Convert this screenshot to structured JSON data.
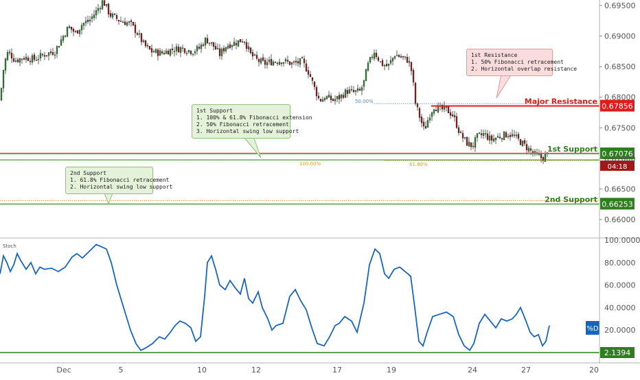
{
  "chart_data": [
    {
      "type": "candlestick",
      "panel": "price",
      "y_axis_ticks": [
        "0.69500",
        "0.69000",
        "0.68500",
        "0.68000",
        "0.67500",
        "0.67000",
        "0.66500",
        "0.66000"
      ],
      "ylim": [
        0.6565,
        0.6965
      ],
      "x_axis_ticks": [
        "Dec",
        "5",
        "10",
        "12",
        "17",
        "19",
        "24",
        "27",
        "20"
      ],
      "close_path": [
        [
          0,
          0.6795
        ],
        [
          6,
          0.6855
        ],
        [
          12,
          0.6875
        ],
        [
          22,
          0.686
        ],
        [
          35,
          0.6865
        ],
        [
          50,
          0.6862
        ],
        [
          65,
          0.687
        ],
        [
          80,
          0.6875
        ],
        [
          92,
          0.69
        ],
        [
          100,
          0.6915
        ],
        [
          110,
          0.6905
        ],
        [
          120,
          0.692
        ],
        [
          130,
          0.6925
        ],
        [
          140,
          0.694
        ],
        [
          150,
          0.6958
        ],
        [
          160,
          0.6935
        ],
        [
          175,
          0.6925
        ],
        [
          190,
          0.692
        ],
        [
          200,
          0.6905
        ],
        [
          210,
          0.6885
        ],
        [
          220,
          0.6875
        ],
        [
          235,
          0.6872
        ],
        [
          250,
          0.6878
        ],
        [
          265,
          0.688
        ],
        [
          280,
          0.6875
        ],
        [
          290,
          0.688
        ],
        [
          300,
          0.6895
        ],
        [
          310,
          0.6885
        ],
        [
          320,
          0.687
        ],
        [
          330,
          0.6885
        ],
        [
          345,
          0.689
        ],
        [
          355,
          0.6895
        ],
        [
          365,
          0.687
        ],
        [
          375,
          0.686
        ],
        [
          385,
          0.6855
        ],
        [
          395,
          0.6858
        ],
        [
          410,
          0.686
        ],
        [
          425,
          0.6855
        ],
        [
          440,
          0.6858
        ],
        [
          450,
          0.684
        ],
        [
          458,
          0.6815
        ],
        [
          465,
          0.6795
        ],
        [
          475,
          0.68
        ],
        [
          485,
          0.6795
        ],
        [
          495,
          0.68
        ],
        [
          505,
          0.681
        ],
        [
          515,
          0.6808
        ],
        [
          525,
          0.681
        ],
        [
          530,
          0.6825
        ],
        [
          535,
          0.685
        ],
        [
          545,
          0.6875
        ],
        [
          555,
          0.6855
        ],
        [
          565,
          0.685
        ],
        [
          575,
          0.687
        ],
        [
          585,
          0.6865
        ],
        [
          595,
          0.686
        ],
        [
          600,
          0.684
        ],
        [
          605,
          0.679
        ],
        [
          612,
          0.6765
        ],
        [
          618,
          0.6745
        ],
        [
          625,
          0.677
        ],
        [
          632,
          0.6785
        ],
        [
          640,
          0.678
        ],
        [
          650,
          0.678
        ],
        [
          660,
          0.677
        ],
        [
          670,
          0.674
        ],
        [
          680,
          0.6725
        ],
        [
          688,
          0.672
        ],
        [
          695,
          0.6735
        ],
        [
          705,
          0.674
        ],
        [
          715,
          0.673
        ],
        [
          725,
          0.6735
        ],
        [
          740,
          0.674
        ],
        [
          750,
          0.6735
        ],
        [
          760,
          0.6725
        ],
        [
          770,
          0.6715
        ],
        [
          780,
          0.6705
        ],
        [
          790,
          0.67
        ],
        [
          798,
          0.6707
        ]
      ],
      "horizontal_levels": [
        {
          "label": "Major Resistance",
          "value": 0.67856,
          "value_label": "0.67856",
          "color": "#e01b1b"
        },
        {
          "label": "1st Support",
          "value": 0.67076,
          "value_label": "0.67076",
          "color": "#2e7d1e"
        },
        {
          "label": "2nd Support",
          "value": 0.66253,
          "value_label": "0.66253",
          "color": "#2e7d1e"
        }
      ],
      "fib_levels": [
        {
          "label": "50.00%",
          "value": 0.67895,
          "color": "#4a90c8"
        },
        {
          "label": "100.00%",
          "value": 0.66975,
          "color": "#d9a020"
        },
        {
          "label": "61.80%",
          "value": 0.66975,
          "color": "#d9a020"
        }
      ],
      "current_price": 0.67076,
      "countdown": "04:18",
      "annotations": [
        {
          "title": "1st Resistance",
          "lines": [
            "1. 50% Fibonacci retracement",
            "2. Horizontal overlap resistance"
          ],
          "color": "red"
        },
        {
          "title": "1st Support",
          "lines": [
            "1. 100% & 61.8% Fibonacci extension",
            "2. 50% Fibonacci retracement",
            "3. Horizontal swing low support"
          ],
          "color": "green"
        },
        {
          "title": "2nd Support",
          "lines": [
            "1. 61.8% Fibonacci retracement",
            "2. Horizontal swing low support"
          ],
          "color": "green"
        }
      ]
    },
    {
      "type": "line",
      "panel": "oscillator",
      "title": "Stoch",
      "y_axis_ticks": [
        "100.0000",
        "80.0000",
        "60.0000",
        "40.0000",
        "20.0000"
      ],
      "ylim": [
        0,
        100
      ],
      "series": [
        {
          "name": "%D",
          "color": "#1565c0",
          "points": [
            [
              0,
              70
            ],
            [
              5,
              86
            ],
            [
              10,
              80
            ],
            [
              15,
              72
            ],
            [
              20,
              78
            ],
            [
              25,
              88
            ],
            [
              30,
              82
            ],
            [
              38,
              74
            ],
            [
              45,
              80
            ],
            [
              52,
              70
            ],
            [
              58,
              76
            ],
            [
              65,
              74
            ],
            [
              75,
              75
            ],
            [
              85,
              72
            ],
            [
              95,
              76
            ],
            [
              105,
              85
            ],
            [
              112,
              88
            ],
            [
              120,
              84
            ],
            [
              130,
              90
            ],
            [
              140,
              96
            ],
            [
              148,
              94
            ],
            [
              155,
              92
            ],
            [
              162,
              80
            ],
            [
              170,
              60
            ],
            [
              180,
              40
            ],
            [
              190,
              20
            ],
            [
              198,
              8
            ],
            [
              205,
              2
            ],
            [
              212,
              4
            ],
            [
              222,
              8
            ],
            [
              232,
              14
            ],
            [
              240,
              12
            ],
            [
              248,
              18
            ],
            [
              255,
              24
            ],
            [
              262,
              28
            ],
            [
              270,
              26
            ],
            [
              278,
              22
            ],
            [
              285,
              10
            ],
            [
              292,
              14
            ],
            [
              298,
              50
            ],
            [
              302,
              80
            ],
            [
              308,
              86
            ],
            [
              314,
              74
            ],
            [
              320,
              60
            ],
            [
              328,
              56
            ],
            [
              335,
              64
            ],
            [
              342,
              58
            ],
            [
              350,
              52
            ],
            [
              356,
              66
            ],
            [
              362,
              48
            ],
            [
              368,
              44
            ],
            [
              376,
              54
            ],
            [
              382,
              40
            ],
            [
              390,
              30
            ],
            [
              396,
              20
            ],
            [
              402,
              24
            ],
            [
              412,
              26
            ],
            [
              422,
              50
            ],
            [
              430,
              56
            ],
            [
              438,
              46
            ],
            [
              446,
              38
            ],
            [
              454,
              22
            ],
            [
              462,
              8
            ],
            [
              472,
              6
            ],
            [
              480,
              14
            ],
            [
              488,
              24
            ],
            [
              494,
              26
            ],
            [
              502,
              32
            ],
            [
              512,
              28
            ],
            [
              520,
              18
            ],
            [
              530,
              44
            ],
            [
              538,
              78
            ],
            [
              546,
              92
            ],
            [
              553,
              88
            ],
            [
              560,
              70
            ],
            [
              566,
              66
            ],
            [
              574,
              74
            ],
            [
              582,
              76
            ],
            [
              590,
              72
            ],
            [
              598,
              68
            ],
            [
              604,
              40
            ],
            [
              610,
              10
            ],
            [
              616,
              6
            ],
            [
              622,
              18
            ],
            [
              630,
              32
            ],
            [
              640,
              34
            ],
            [
              650,
              36
            ],
            [
              660,
              32
            ],
            [
              668,
              16
            ],
            [
              676,
              6
            ],
            [
              684,
              2
            ],
            [
              690,
              8
            ],
            [
              698,
              26
            ],
            [
              706,
              34
            ],
            [
              714,
              28
            ],
            [
              722,
              22
            ],
            [
              730,
              30
            ],
            [
              738,
              28
            ],
            [
              746,
              30
            ],
            [
              752,
              34
            ],
            [
              758,
              40
            ],
            [
              766,
              28
            ],
            [
              772,
              18
            ],
            [
              778,
              14
            ],
            [
              784,
              16
            ],
            [
              790,
              6
            ],
            [
              795,
              10
            ],
            [
              800,
              24
            ]
          ]
        }
      ],
      "horizontal_levels": [
        {
          "value": 2.1394,
          "value_label": "2.1394",
          "color": "#2e7d1e"
        }
      ],
      "legend_label": "%D",
      "current_label": "20.0000"
    }
  ]
}
